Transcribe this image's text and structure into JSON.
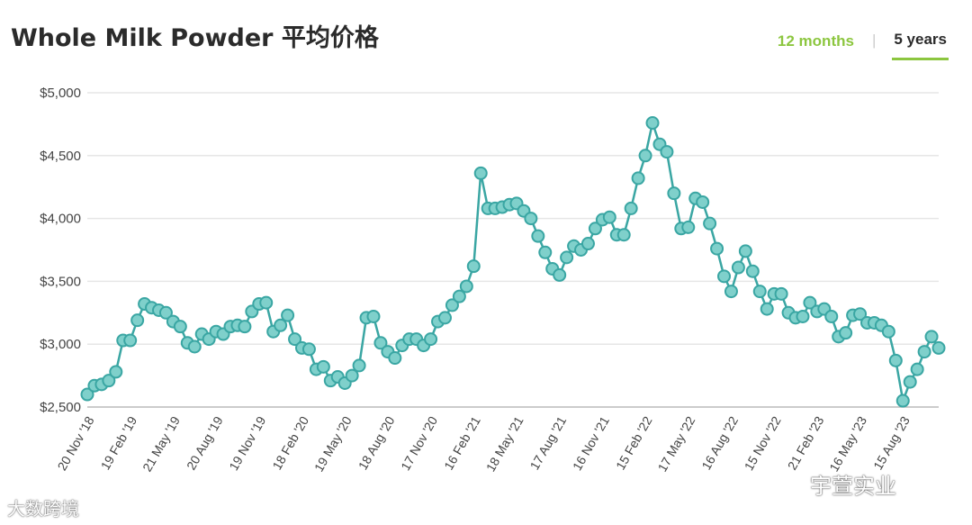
{
  "title": "Whole Milk Powder 平均价格",
  "tabs": {
    "first": "12 months",
    "separator": "|",
    "second": "5 years",
    "active": "5 years"
  },
  "colors": {
    "line": "#3aa6a3",
    "marker_fill": "#7fd0cb",
    "accent": "#8cc63f",
    "grid": "#e6e6e6"
  },
  "watermarks": {
    "left": "大数跨境",
    "right": "宇萱实业"
  },
  "chart_data": {
    "type": "line",
    "ylim": [
      2500,
      5000
    ],
    "y_ticks": [
      2500,
      3000,
      3500,
      4000,
      4500,
      5000
    ],
    "y_tick_labels": [
      "$2,500",
      "$3,000",
      "$3,500",
      "$4,000",
      "$4,500",
      "$5,000"
    ],
    "x_tick_labels": [
      {
        "index": 0,
        "label": "20 Nov '18"
      },
      {
        "index": 6,
        "label": "19 Feb '19"
      },
      {
        "index": 12,
        "label": "21 May '19"
      },
      {
        "index": 18,
        "label": "20 Aug '19"
      },
      {
        "index": 24,
        "label": "19 Nov '19"
      },
      {
        "index": 30,
        "label": "18 Feb '20"
      },
      {
        "index": 36,
        "label": "19 May '20"
      },
      {
        "index": 42,
        "label": "18 Aug '20"
      },
      {
        "index": 48,
        "label": "17 Nov '20"
      },
      {
        "index": 54,
        "label": "16 Feb '21"
      },
      {
        "index": 60,
        "label": "18 May '21"
      },
      {
        "index": 66,
        "label": "17 Aug '21"
      },
      {
        "index": 72,
        "label": "16 Nov '21"
      },
      {
        "index": 78,
        "label": "15 Feb '22"
      },
      {
        "index": 84,
        "label": "17 May '22"
      },
      {
        "index": 90,
        "label": "16 Aug '22"
      },
      {
        "index": 96,
        "label": "15 Nov '22"
      },
      {
        "index": 102,
        "label": "21 Feb '23"
      },
      {
        "index": 108,
        "label": "16 May '23"
      },
      {
        "index": 114,
        "label": "15 Aug '23"
      }
    ],
    "values": [
      2600,
      2670,
      2680,
      2710,
      2780,
      3030,
      3030,
      3190,
      3320,
      3290,
      3270,
      3250,
      3180,
      3140,
      3010,
      2980,
      3080,
      3040,
      3100,
      3080,
      3140,
      3150,
      3140,
      3260,
      3320,
      3330,
      3100,
      3150,
      3230,
      3040,
      2970,
      2960,
      2800,
      2820,
      2710,
      2740,
      2690,
      2750,
      2830,
      3210,
      3220,
      3010,
      2940,
      2890,
      2990,
      3040,
      3040,
      2990,
      3040,
      3180,
      3210,
      3310,
      3380,
      3460,
      3620,
      4360,
      4080,
      4080,
      4090,
      4110,
      4120,
      4060,
      4000,
      3860,
      3730,
      3600,
      3550,
      3690,
      3780,
      3750,
      3800,
      3920,
      3990,
      4010,
      3870,
      3870,
      4080,
      4320,
      4500,
      4760,
      4590,
      4530,
      4200,
      3920,
      3930,
      4160,
      4130,
      3960,
      3760,
      3540,
      3420,
      3610,
      3740,
      3580,
      3420,
      3280,
      3400,
      3400,
      3250,
      3210,
      3220,
      3330,
      3260,
      3280,
      3220,
      3060,
      3090,
      3230,
      3240,
      3170,
      3170,
      3150,
      3100,
      2870,
      2550,
      2700,
      2800,
      2940,
      3060,
      2970
    ]
  }
}
